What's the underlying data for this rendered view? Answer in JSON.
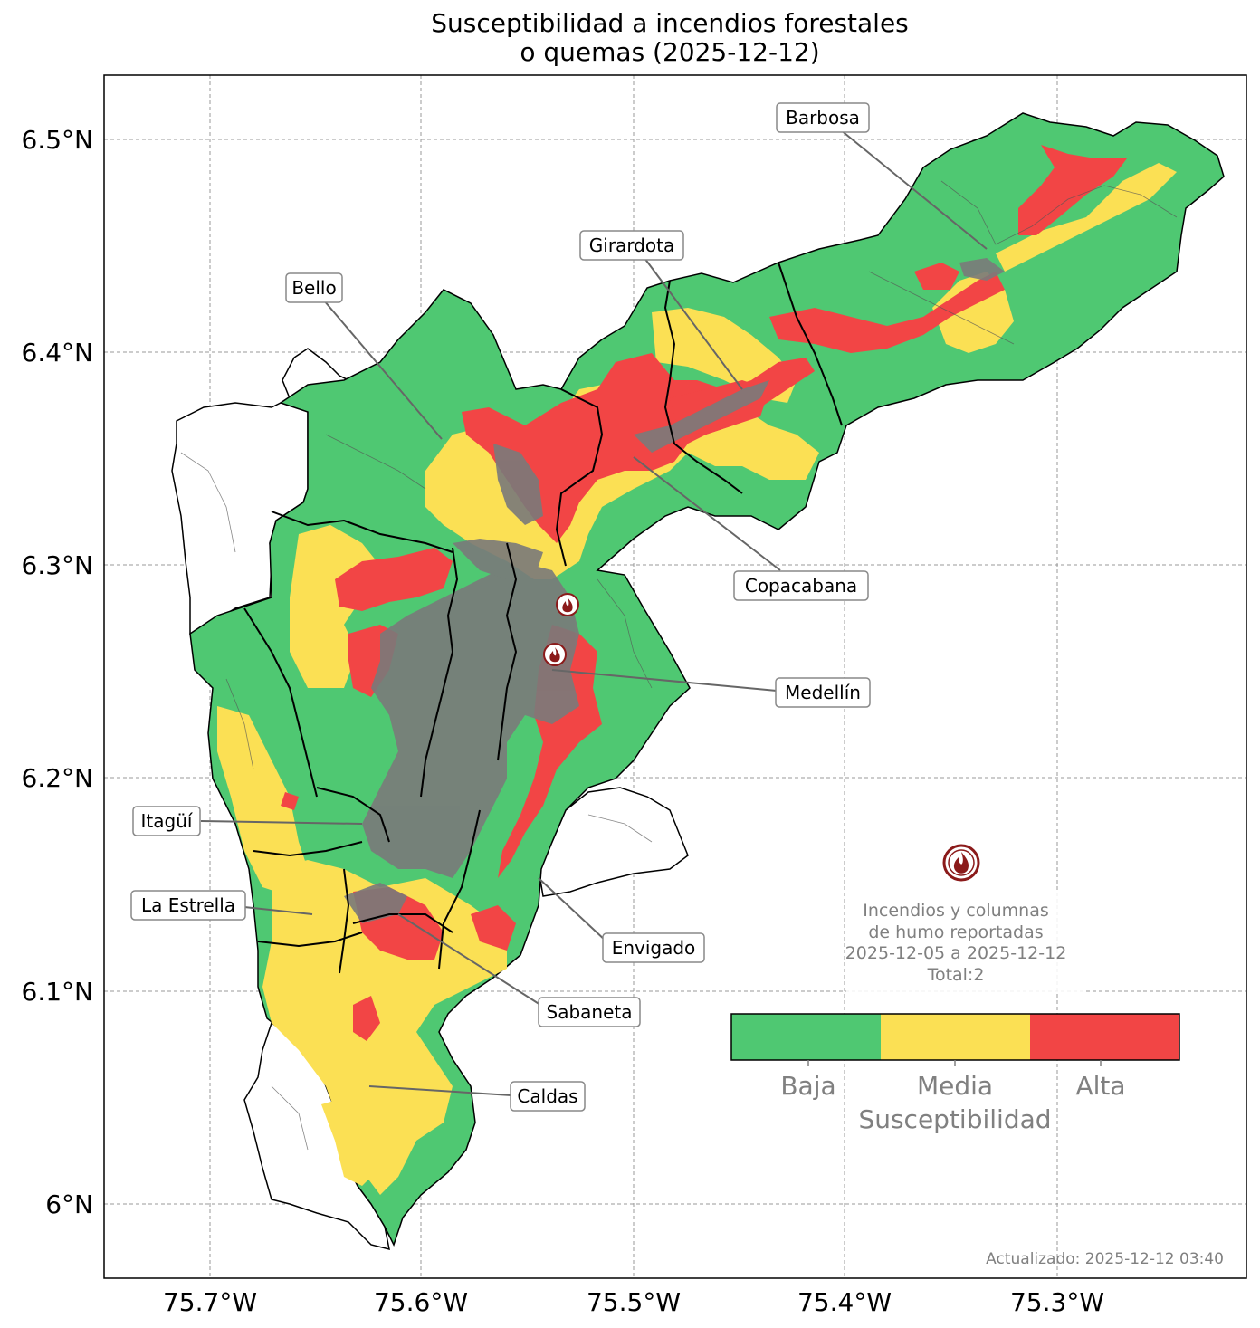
{
  "title": {
    "line1": "Susceptibilidad a incendios forestales",
    "line2": "o quemas (2025-12-12)"
  },
  "axes": {
    "lat_ticks": [
      "6.5°N",
      "6.4°N",
      "6.3°N",
      "6.2°N",
      "6.1°N",
      "6°N"
    ],
    "lon_ticks": [
      "75.7°W",
      "75.6°W",
      "75.5°W",
      "75.4°W",
      "75.3°W"
    ]
  },
  "places": [
    {
      "name": "Barbosa"
    },
    {
      "name": "Girardota"
    },
    {
      "name": "Bello"
    },
    {
      "name": "Copacabana"
    },
    {
      "name": "Medellín"
    },
    {
      "name": "Itagüí"
    },
    {
      "name": "La Estrella"
    },
    {
      "name": "Envigado"
    },
    {
      "name": "Sabaneta"
    },
    {
      "name": "Caldas"
    }
  ],
  "fire_legend": {
    "line1": "Incendios y columnas",
    "line2": "de humo reportadas",
    "line3": "2025-12-05 a 2025-12-12",
    "line4": "Total:2"
  },
  "colorbar": {
    "title": "Susceptibilidad",
    "classes": [
      {
        "label": "Baja",
        "color": "#4fc872"
      },
      {
        "label": "Media",
        "color": "#fbe054"
      },
      {
        "label": "Alta",
        "color": "#f24545"
      }
    ]
  },
  "updated": "Actualizado: 2025-12-12 03:40",
  "colors": {
    "baja": "#4fc872",
    "media": "#fbe054",
    "alta": "#f24545",
    "urban": "#7a7a7a",
    "fire_icon": "#8b1a1a"
  },
  "fire_reports_count": 2
}
